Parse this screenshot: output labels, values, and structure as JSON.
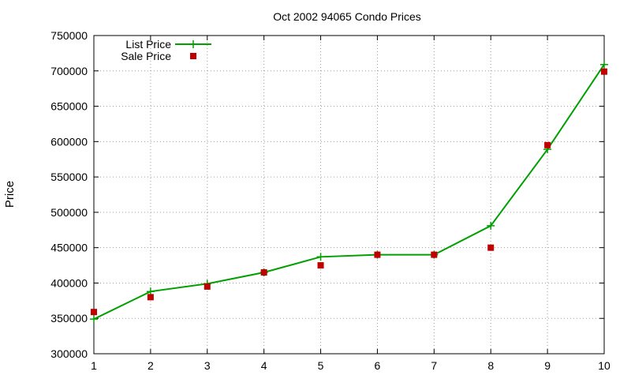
{
  "chart_data": {
    "type": "line",
    "title": "Oct 2002 94065 Condo Prices",
    "xlabel": "",
    "ylabel": "Price",
    "xlim": [
      1,
      10
    ],
    "ylim": [
      300000,
      750000
    ],
    "x_ticks": [
      "1",
      "2",
      "3",
      "4",
      "5",
      "6",
      "7",
      "8",
      "9",
      "10"
    ],
    "y_ticks": [
      "300000",
      "350000",
      "400000",
      "450000",
      "500000",
      "550000",
      "600000",
      "650000",
      "700000",
      "750000"
    ],
    "grid": true,
    "legend_position": "top-left",
    "series": [
      {
        "name": "List Price",
        "style": "line-with-plus-markers",
        "color": "#00a000",
        "x": [
          1,
          2,
          3,
          4,
          5,
          6,
          7,
          8,
          9,
          10
        ],
        "values": [
          349000,
          388000,
          399000,
          415000,
          437000,
          440000,
          440000,
          481000,
          589000,
          709000
        ]
      },
      {
        "name": "Sale Price",
        "style": "square-points",
        "color": "#c00000",
        "x": [
          1,
          2,
          3,
          4,
          5,
          6,
          7,
          8,
          9,
          10
        ],
        "values": [
          359000,
          380000,
          395000,
          415000,
          425000,
          440000,
          440000,
          450000,
          595000,
          699000
        ]
      }
    ]
  }
}
